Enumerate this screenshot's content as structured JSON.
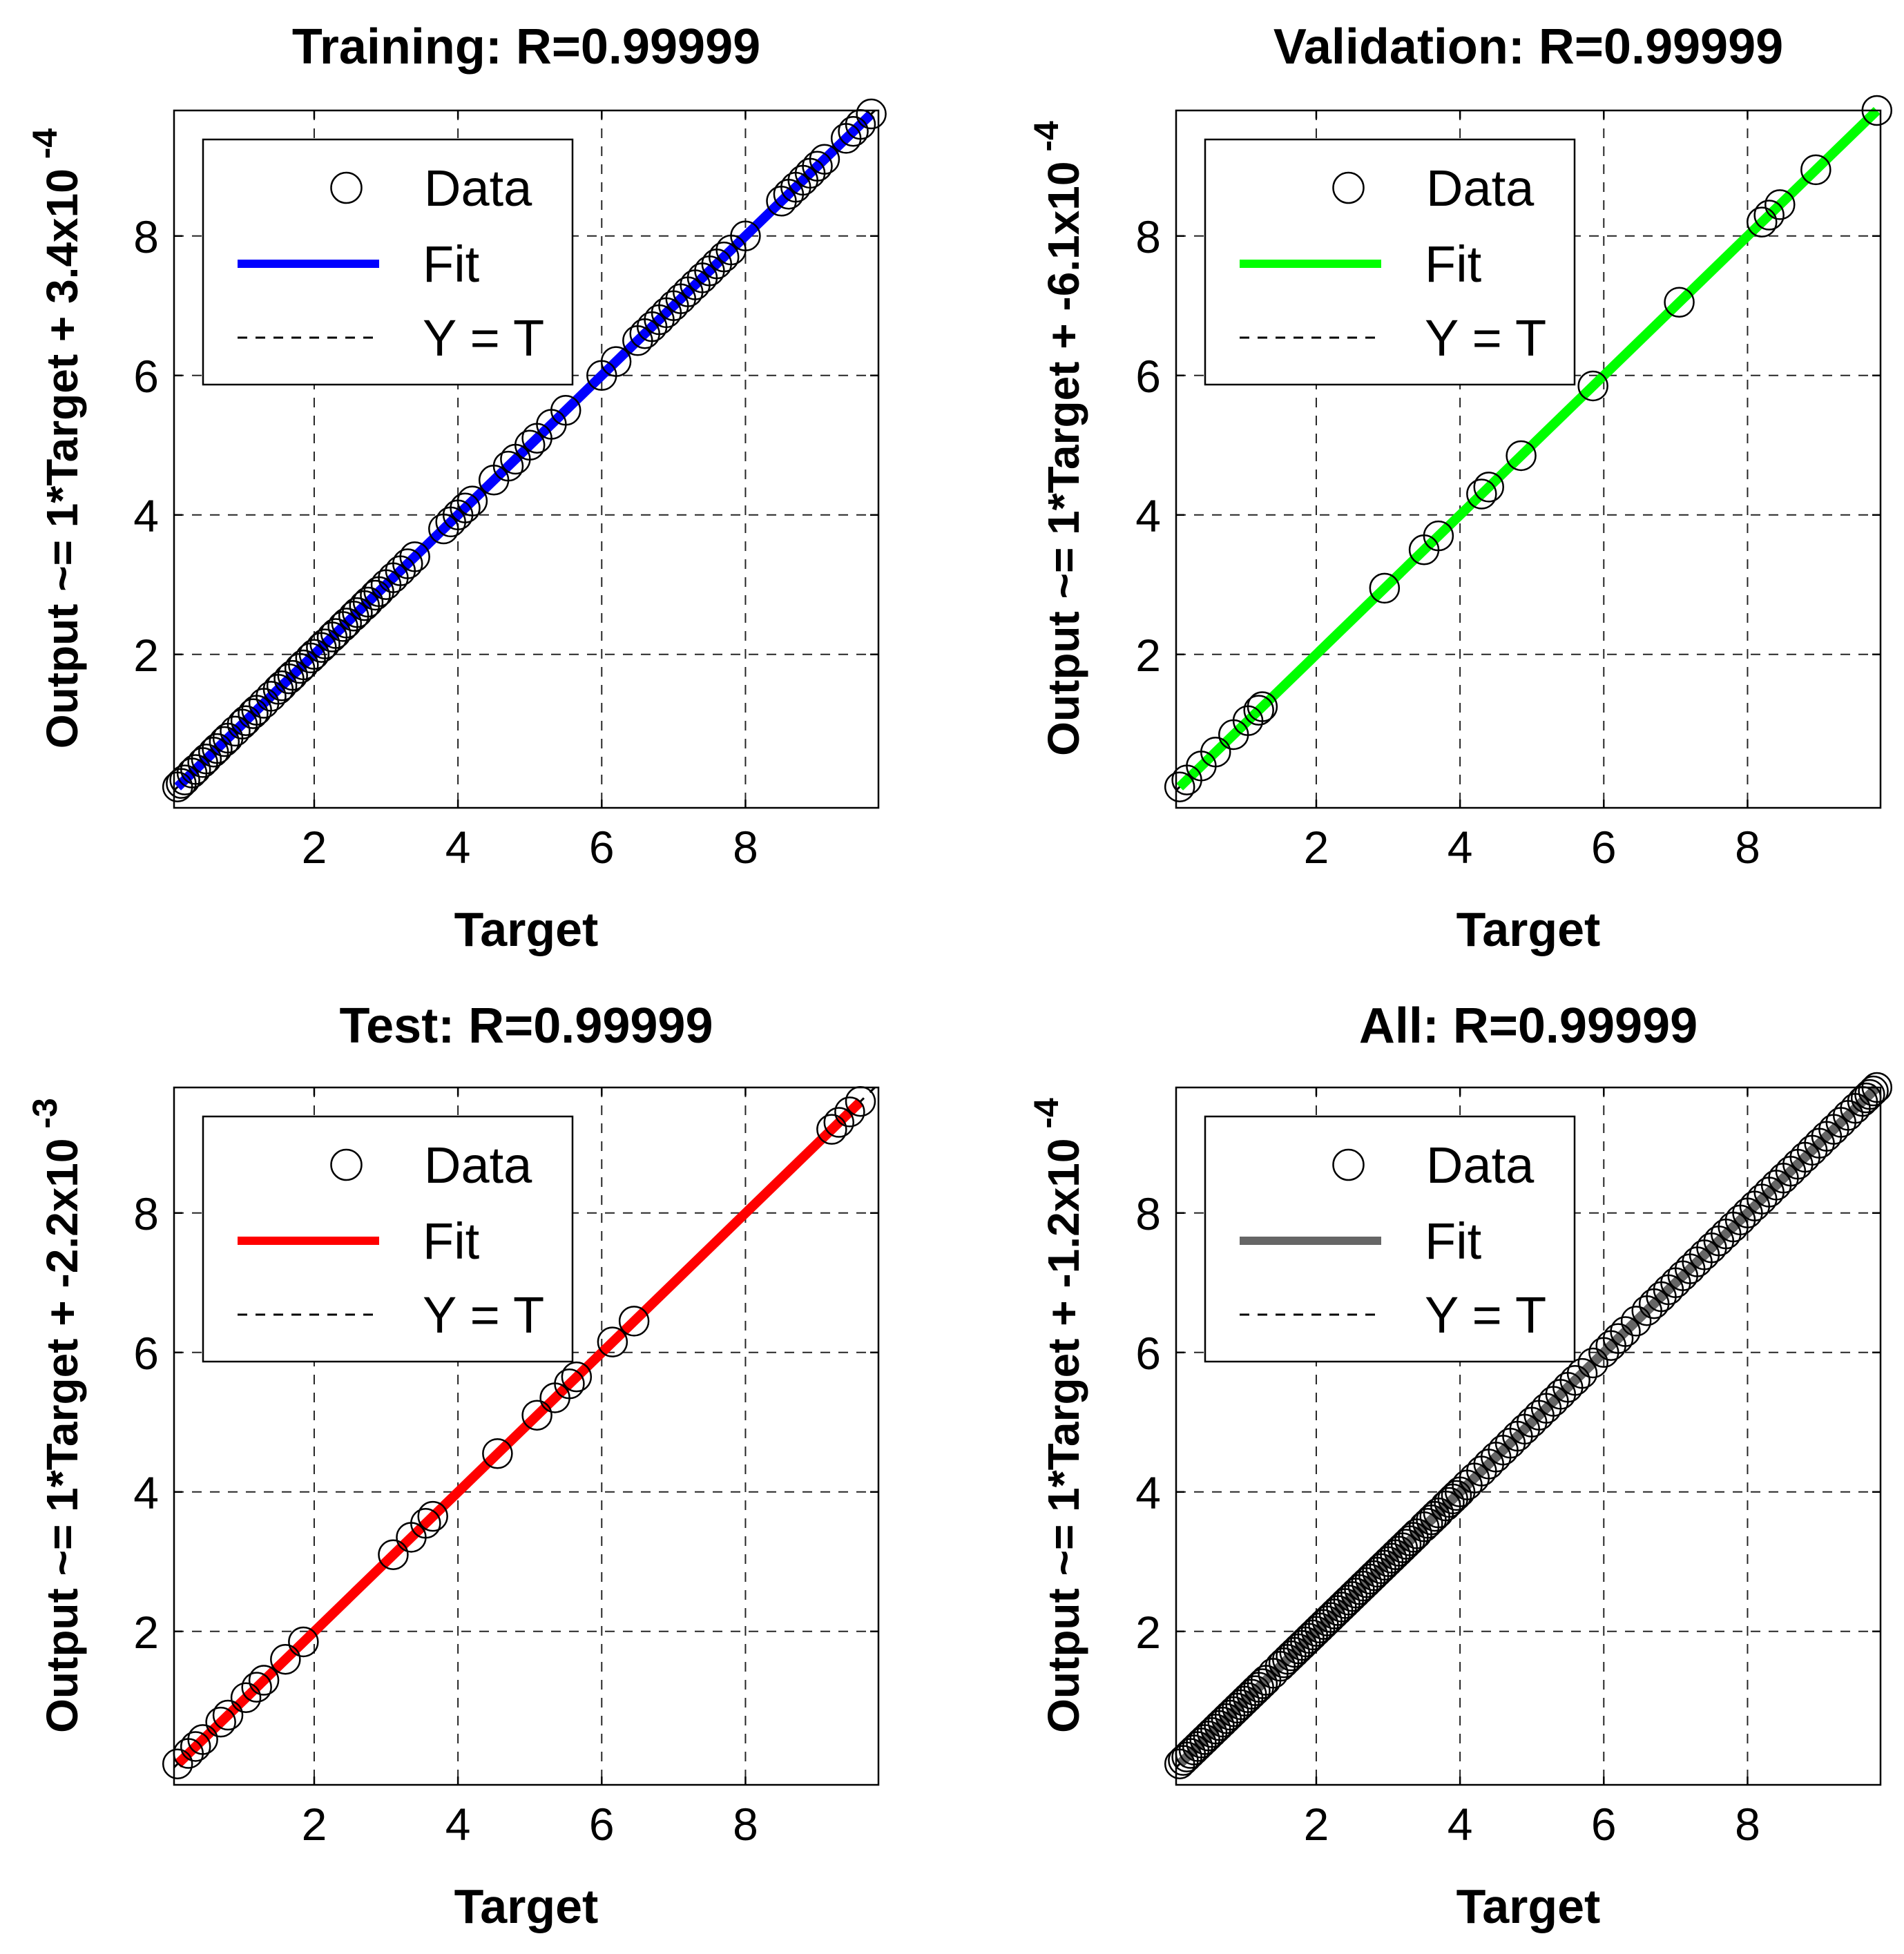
{
  "figure": {
    "background": "#ffffff",
    "grid": true
  },
  "chart_data": [
    {
      "type": "scatter",
      "title": "Training: R=0.99999",
      "xlabel": "Target",
      "ylabel": "Output ~= 1*Target + 3.4x10",
      "ylabel_exponent": "-4",
      "xlim": [
        0.05,
        9.85
      ],
      "ylim": [
        -0.2,
        9.8
      ],
      "xticks": [
        "2",
        "4",
        "6",
        "8"
      ],
      "yticks": [
        "2",
        "4",
        "6",
        "8"
      ],
      "fit_color": "#0000ff",
      "legend": {
        "position": "top-left",
        "entries": [
          "Data",
          "Fit",
          "Y = T"
        ]
      },
      "fit": {
        "slope": 1,
        "intercept": 0.00034
      },
      "points": [
        0.1,
        0.15,
        0.2,
        0.3,
        0.35,
        0.45,
        0.5,
        0.6,
        0.65,
        0.75,
        0.8,
        0.9,
        1.0,
        1.05,
        1.15,
        1.2,
        1.3,
        1.4,
        1.5,
        1.55,
        1.65,
        1.7,
        1.8,
        1.85,
        1.95,
        2.0,
        2.1,
        2.15,
        2.25,
        2.3,
        2.4,
        2.45,
        2.55,
        2.6,
        2.7,
        2.75,
        2.85,
        2.9,
        3.0,
        3.1,
        3.2,
        3.3,
        3.4,
        3.8,
        3.9,
        4.0,
        4.1,
        4.2,
        4.5,
        4.7,
        4.8,
        5.0,
        5.1,
        5.3,
        5.5,
        6.0,
        6.2,
        6.5,
        6.6,
        6.7,
        6.8,
        6.9,
        7.0,
        7.1,
        7.2,
        7.3,
        7.4,
        7.5,
        7.6,
        7.7,
        7.8,
        8.0,
        8.5,
        8.6,
        8.7,
        8.8,
        8.9,
        9.0,
        9.1,
        9.4,
        9.5,
        9.6,
        9.75
      ]
    },
    {
      "type": "scatter",
      "title": "Validation: R=0.99999",
      "xlabel": "Target",
      "ylabel": "Output ~= 1*Target + -6.1x10",
      "ylabel_exponent": "-4",
      "xlim": [
        0.05,
        9.85
      ],
      "ylim": [
        -0.2,
        9.8
      ],
      "xticks": [
        "2",
        "4",
        "6",
        "8"
      ],
      "yticks": [
        "2",
        "4",
        "6",
        "8"
      ],
      "fit_color": "#00ff00",
      "legend": {
        "position": "top-left",
        "entries": [
          "Data",
          "Fit",
          "Y = T"
        ]
      },
      "fit": {
        "slope": 1,
        "intercept": -0.00061
      },
      "points": [
        0.1,
        0.2,
        0.4,
        0.6,
        0.85,
        1.05,
        1.2,
        1.25,
        2.95,
        3.5,
        3.7,
        4.3,
        4.4,
        4.85,
        5.85,
        7.05,
        8.2,
        8.3,
        8.45,
        8.95,
        9.8
      ]
    },
    {
      "type": "scatter",
      "title": "Test: R=0.99999",
      "xlabel": "Target",
      "ylabel": "Output ~= 1*Target + -2.2x10",
      "ylabel_exponent": "-3",
      "xlim": [
        0.05,
        9.85
      ],
      "ylim": [
        -0.2,
        9.8
      ],
      "xticks": [
        "2",
        "4",
        "6",
        "8"
      ],
      "yticks": [
        "2",
        "4",
        "6",
        "8"
      ],
      "fit_color": "#ff0000",
      "legend": {
        "position": "top-left",
        "entries": [
          "Data",
          "Fit",
          "Y = T"
        ]
      },
      "fit": {
        "slope": 1,
        "intercept": -0.0022
      },
      "points": [
        0.1,
        0.25,
        0.35,
        0.45,
        0.7,
        0.8,
        1.05,
        1.2,
        1.3,
        1.6,
        1.85,
        3.1,
        3.35,
        3.55,
        3.65,
        4.55,
        5.1,
        5.35,
        5.55,
        5.65,
        6.15,
        6.45,
        9.2,
        9.3,
        9.45,
        9.6
      ]
    },
    {
      "type": "scatter",
      "title": "All: R=0.99999",
      "xlabel": "Target",
      "ylabel": "Output ~= 1*Target + -1.2x10",
      "ylabel_exponent": "-4",
      "xlim": [
        0.05,
        9.85
      ],
      "ylim": [
        -0.2,
        9.8
      ],
      "xticks": [
        "2",
        "4",
        "6",
        "8"
      ],
      "yticks": [
        "2",
        "4",
        "6",
        "8"
      ],
      "fit_color": "#666666",
      "legend": {
        "position": "top-left",
        "entries": [
          "Data",
          "Fit",
          "Y = T"
        ]
      },
      "fit": {
        "slope": 1,
        "intercept": -0.00012
      },
      "points": [
        0.1,
        0.15,
        0.2,
        0.25,
        0.3,
        0.35,
        0.4,
        0.45,
        0.5,
        0.55,
        0.6,
        0.65,
        0.7,
        0.75,
        0.8,
        0.85,
        0.9,
        0.95,
        1.0,
        1.05,
        1.1,
        1.15,
        1.2,
        1.25,
        1.3,
        1.4,
        1.5,
        1.55,
        1.6,
        1.65,
        1.7,
        1.75,
        1.8,
        1.85,
        1.9,
        1.95,
        2.0,
        2.05,
        2.1,
        2.15,
        2.2,
        2.25,
        2.3,
        2.35,
        2.4,
        2.45,
        2.5,
        2.55,
        2.6,
        2.65,
        2.7,
        2.75,
        2.8,
        2.85,
        2.9,
        2.95,
        3.0,
        3.05,
        3.1,
        3.15,
        3.2,
        3.25,
        3.3,
        3.35,
        3.4,
        3.5,
        3.55,
        3.6,
        3.65,
        3.7,
        3.8,
        3.85,
        3.9,
        3.95,
        4.0,
        4.1,
        4.2,
        4.3,
        4.4,
        4.5,
        4.6,
        4.7,
        4.8,
        4.9,
        5.0,
        5.1,
        5.2,
        5.3,
        5.4,
        5.5,
        5.6,
        5.7,
        5.85,
        6.0,
        6.1,
        6.2,
        6.3,
        6.45,
        6.6,
        6.7,
        6.8,
        6.9,
        7.0,
        7.1,
        7.2,
        7.3,
        7.4,
        7.5,
        7.6,
        7.7,
        7.8,
        7.9,
        8.0,
        8.1,
        8.2,
        8.3,
        8.4,
        8.5,
        8.6,
        8.7,
        8.8,
        8.9,
        9.0,
        9.1,
        9.2,
        9.3,
        9.4,
        9.5,
        9.6,
        9.65,
        9.7,
        9.75,
        9.8
      ]
    }
  ]
}
